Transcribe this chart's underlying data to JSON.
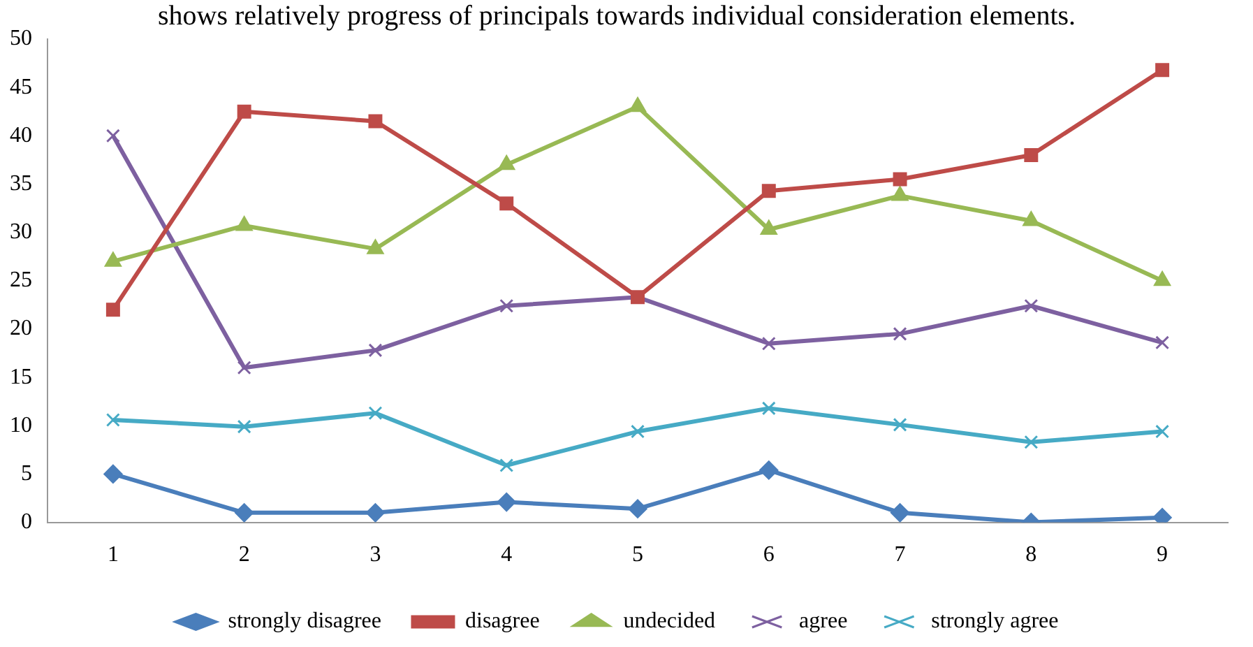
{
  "chart_data": {
    "type": "line",
    "title": "shows relatively progress of principals towards individual consideration elements.",
    "categories": [
      "1",
      "2",
      "3",
      "4",
      "5",
      "6",
      "7",
      "8",
      "9"
    ],
    "series": [
      {
        "name": "strongly disagree",
        "color": "#4a7ebb",
        "marker": "diamond",
        "values": [
          5,
          1,
          1,
          2.1,
          1.4,
          5.4,
          1,
          0,
          0.5
        ]
      },
      {
        "name": "disagree",
        "color": "#be4b48",
        "marker": "square",
        "values": [
          22,
          42.5,
          41.5,
          33,
          23.3,
          34.3,
          35.5,
          38,
          46.8
        ]
      },
      {
        "name": "undecided",
        "color": "#98b954",
        "marker": "triangle",
        "values": [
          27,
          30.7,
          28.3,
          37,
          43,
          30.3,
          33.8,
          31.2,
          25
        ]
      },
      {
        "name": "agree",
        "color": "#7d60a0",
        "marker": "cross",
        "values": [
          40,
          16,
          17.8,
          22.4,
          23.3,
          18.5,
          19.5,
          22.4,
          18.6
        ]
      },
      {
        "name": "strongly agree",
        "color": "#46aac5",
        "marker": "cross",
        "values": [
          10.6,
          9.9,
          11.3,
          5.9,
          9.4,
          11.8,
          10.1,
          8.3,
          9.4
        ]
      }
    ],
    "ylim": [
      0,
      50
    ],
    "yticks": [
      0,
      5,
      10,
      15,
      20,
      25,
      30,
      35,
      40,
      45,
      50
    ],
    "grid": false,
    "legend": "bottom",
    "line_style": "solid"
  }
}
